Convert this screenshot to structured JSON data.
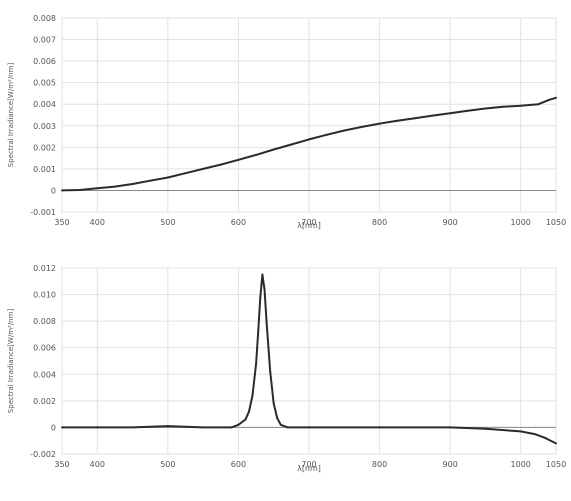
{
  "chart_data": [
    {
      "type": "line",
      "title": "",
      "xlabel": "λ[nm]",
      "ylabel": "Spectral Irradiance[W/m²/nm]",
      "xlim": [
        350,
        1050
      ],
      "ylim": [
        -0.001,
        0.008
      ],
      "xticks": [
        "350",
        "400",
        "500",
        "600",
        "700",
        "800",
        "900",
        "1000",
        "1050"
      ],
      "yticks": [
        "-0.001",
        "0",
        "0.001",
        "0.002",
        "0.003",
        "0.004",
        "0.005",
        "0.006",
        "0.007",
        "0.008"
      ],
      "grid": true,
      "color": "#2b2b2b",
      "x": [
        350,
        375,
        400,
        425,
        450,
        475,
        500,
        525,
        550,
        575,
        600,
        625,
        650,
        675,
        700,
        725,
        750,
        775,
        800,
        825,
        850,
        875,
        900,
        925,
        950,
        975,
        1000,
        1025,
        1040,
        1050
      ],
      "y": [
        0.0,
        2e-05,
        0.0001,
        0.00018,
        0.0003,
        0.00045,
        0.0006,
        0.0008,
        0.001,
        0.0012,
        0.00142,
        0.00165,
        0.0019,
        0.00213,
        0.00237,
        0.00258,
        0.00278,
        0.00295,
        0.0031,
        0.00323,
        0.00335,
        0.00347,
        0.00358,
        0.0037,
        0.0038,
        0.00388,
        0.00393,
        0.004,
        0.0042,
        0.0043
      ]
    },
    {
      "type": "line",
      "title": "",
      "xlabel": "λ[nm]",
      "ylabel": "Spectral Irradiance[W/m²/nm]",
      "xlim": [
        350,
        1050
      ],
      "ylim": [
        -0.002,
        0.012
      ],
      "xticks": [
        "350",
        "400",
        "500",
        "600",
        "700",
        "800",
        "900",
        "1000",
        "1050"
      ],
      "yticks": [
        "-0.002",
        "0",
        "0.002",
        "0.004",
        "0.006",
        "0.008",
        "0.010",
        "0.012"
      ],
      "grid": true,
      "color": "#2b2b2b",
      "x": [
        350,
        400,
        450,
        500,
        550,
        590,
        600,
        610,
        615,
        620,
        625,
        628,
        631,
        634,
        637,
        640,
        645,
        650,
        655,
        660,
        670,
        700,
        800,
        900,
        950,
        1000,
        1020,
        1035,
        1050
      ],
      "y": [
        0.0,
        0.0,
        0.0,
        0.0001,
        0.0,
        0.0,
        0.0002,
        0.0006,
        0.0012,
        0.0024,
        0.0048,
        0.0072,
        0.0098,
        0.0115,
        0.0104,
        0.0078,
        0.0042,
        0.0018,
        0.0007,
        0.0002,
        0.0,
        0.0,
        0.0,
        0.0,
        -0.0001,
        -0.0003,
        -0.0005,
        -0.0008,
        -0.0012
      ]
    }
  ]
}
